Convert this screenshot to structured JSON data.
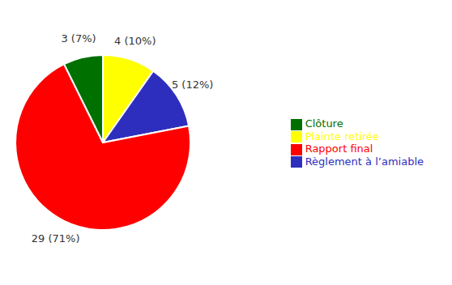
{
  "chart_data": {
    "type": "pie",
    "categories": [
      "Plainte retirée",
      "Règlement à l’amiable",
      "Rapport final",
      "Clôture"
    ],
    "values": [
      4,
      5,
      29,
      3
    ],
    "value_labels": [
      "4 (10%)",
      "5 (12%)",
      "29 (71%)",
      "3 (7%)"
    ],
    "colors": [
      "#FFFF00",
      "#2E2EBE",
      "#FF0000",
      "#007000"
    ],
    "data_labels": true,
    "legend": "right"
  }
}
